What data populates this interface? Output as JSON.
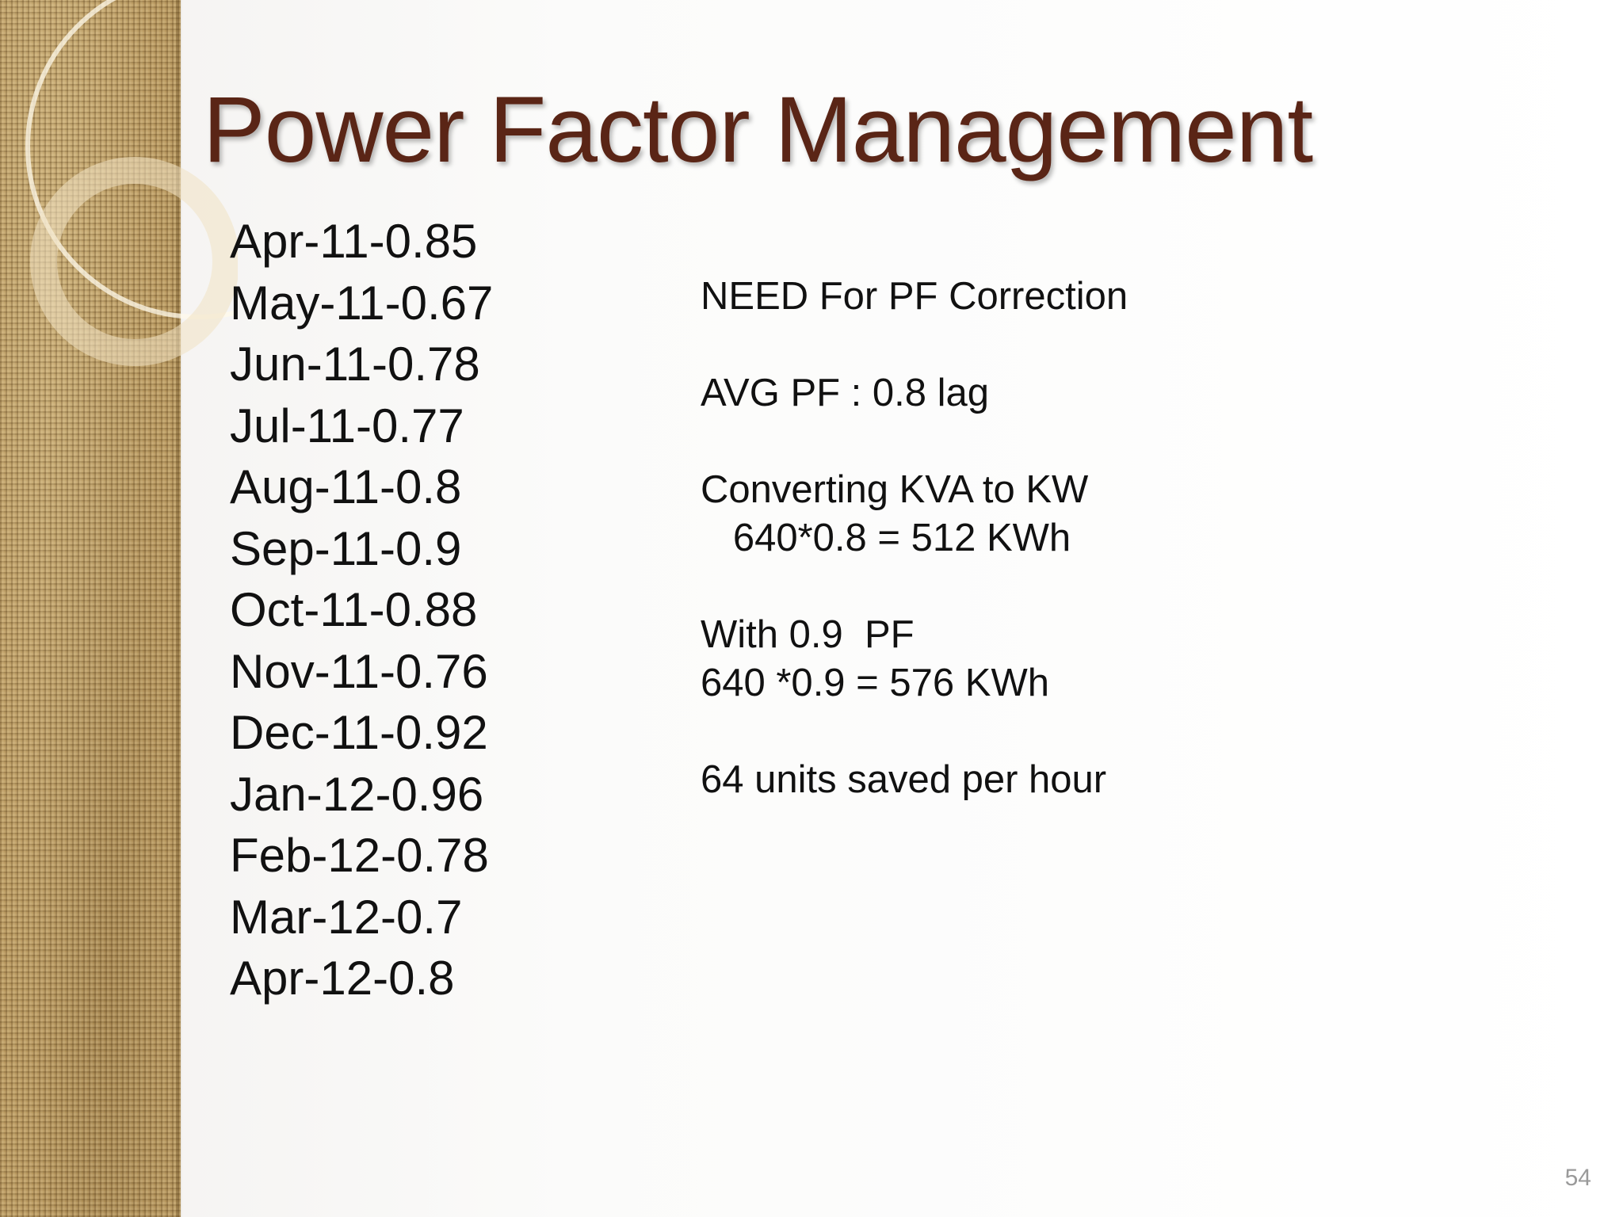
{
  "slide": {
    "title": "Power Factor Management",
    "page_number": "54",
    "title_color": "#5a2516",
    "monthly_pf": [
      "Apr-11-0.85",
      "May-11-0.67",
      "Jun-11-0.78",
      "Jul-11-0.77",
      "Aug-11-0.8",
      "Sep-11-0.9",
      "Oct-11-0.88",
      "Nov-11-0.76",
      "Dec-11-0.92",
      "Jan-12-0.96",
      "Feb-12-0.78",
      "Mar-12-0.7",
      "Apr-12-0.8"
    ],
    "notes": {
      "need": "NEED For PF Correction",
      "avg_pf": "AVG PF : 0.8 lag",
      "convert_heading": "Converting KVA to KW",
      "convert_calc": "   640*0.8 = 512 KWh",
      "with_pf": "With 0.9  PF",
      "with_calc": "640 *0.9 = 576 KWh",
      "saved": "64 units saved per hour"
    }
  }
}
